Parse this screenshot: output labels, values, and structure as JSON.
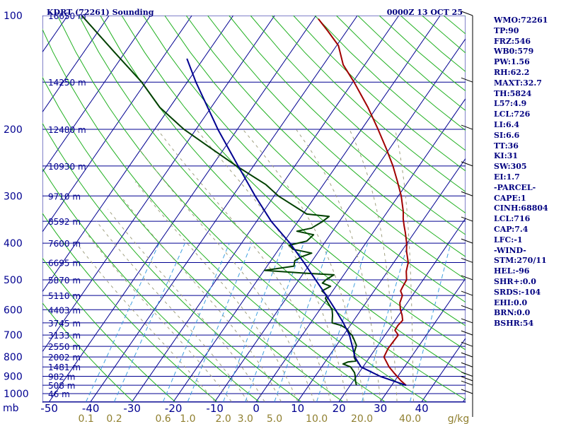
{
  "chart_data": {
    "type": "line",
    "title": "KDRT (72261) Sounding",
    "timestamp": "0000Z 13 OCT 25",
    "pressure_axis": {
      "labels": [
        "100",
        "200",
        "300",
        "400",
        "500",
        "600",
        "700",
        "800",
        "900",
        "1000"
      ],
      "values": [
        100,
        200,
        300,
        400,
        500,
        600,
        700,
        800,
        900,
        1000
      ],
      "unit": "mb",
      "ylim": [
        100,
        1050
      ],
      "scale": "log"
    },
    "temperature_axis": {
      "labels": [
        "-50",
        "-40",
        "-30",
        "-20",
        "-10",
        "0",
        "10",
        "20",
        "30",
        "40"
      ],
      "values": [
        -50,
        -40,
        -30,
        -20,
        -10,
        0,
        10,
        20,
        30,
        40
      ]
    },
    "mixing_ratio_axis": {
      "labels": [
        "0.1",
        "0.2",
        "0.6",
        "1.0",
        "2.0",
        "3.0",
        "5.0",
        "10.0",
        "20.0",
        "40.0"
      ],
      "values": [
        0.1,
        0.2,
        0.6,
        1.0,
        2.0,
        3.0,
        5.0,
        10.0,
        20.0,
        40.0
      ],
      "unit": "g/kg"
    },
    "height_labels": [
      {
        "p": 100,
        "text": "16650 m"
      },
      {
        "p": 150,
        "text": "14250 m"
      },
      {
        "p": 200,
        "text": "12480 m"
      },
      {
        "p": 250,
        "text": "10930 m"
      },
      {
        "p": 300,
        "text": "9710 m"
      },
      {
        "p": 350,
        "text": "8592 m"
      },
      {
        "p": 400,
        "text": "7600 m"
      },
      {
        "p": 450,
        "text": "6695 m"
      },
      {
        "p": 500,
        "text": "5870 m"
      },
      {
        "p": 550,
        "text": "5110 m"
      },
      {
        "p": 600,
        "text": "4403 m"
      },
      {
        "p": 650,
        "text": "3745 m"
      },
      {
        "p": 700,
        "text": "3133 m"
      },
      {
        "p": 750,
        "text": "2550 m"
      },
      {
        "p": 800,
        "text": "2002 m"
      },
      {
        "p": 850,
        "text": "1481 m"
      },
      {
        "p": 900,
        "text": "982 m"
      },
      {
        "p": 950,
        "text": "508 m"
      },
      {
        "p": 1000,
        "text": "46 m"
      }
    ],
    "series": [
      {
        "name": "temperature",
        "color": "#a00000",
        "points": [
          [
            951,
            33.5
          ],
          [
            925,
            31.5
          ],
          [
            880,
            28.4
          ],
          [
            850,
            26.3
          ],
          [
            800,
            23.4
          ],
          [
            760,
            23.0
          ],
          [
            700,
            23.2
          ],
          [
            680,
            21.6
          ],
          [
            660,
            21.5
          ],
          [
            640,
            21.8
          ],
          [
            620,
            20.8
          ],
          [
            600,
            19.5
          ],
          [
            575,
            18.2
          ],
          [
            550,
            17.6
          ],
          [
            535,
            16.4
          ],
          [
            520,
            16.2
          ],
          [
            500,
            16.0
          ],
          [
            475,
            14.5
          ],
          [
            450,
            13.5
          ],
          [
            420,
            11.2
          ],
          [
            400,
            9.9
          ],
          [
            375,
            7.8
          ],
          [
            360,
            6.4
          ],
          [
            345,
            5.0
          ],
          [
            330,
            3.8
          ],
          [
            300,
            0.7
          ],
          [
            275,
            -2.6
          ],
          [
            250,
            -6.3
          ],
          [
            225,
            -10.8
          ],
          [
            200,
            -16.0
          ],
          [
            175,
            -22.1
          ],
          [
            150,
            -29.7
          ],
          [
            135,
            -35.2
          ],
          [
            120,
            -39.6
          ],
          [
            110,
            -44.5
          ],
          [
            102,
            -48.9
          ]
        ]
      },
      {
        "name": "dewpoint",
        "color": "#004000",
        "points": [
          [
            951,
            21.5
          ],
          [
            925,
            20.5
          ],
          [
            900,
            19.7
          ],
          [
            880,
            18.9
          ],
          [
            850,
            17.0
          ],
          [
            835,
            14.7
          ],
          [
            825,
            15.5
          ],
          [
            820,
            17.3
          ],
          [
            800,
            16.2
          ],
          [
            775,
            15.4
          ],
          [
            745,
            14.8
          ],
          [
            720,
            13.3
          ],
          [
            700,
            12.0
          ],
          [
            690,
            11.0
          ],
          [
            675,
            9.9
          ],
          [
            660,
            7.8
          ],
          [
            650,
            5.2
          ],
          [
            640,
            4.8
          ],
          [
            620,
            4.0
          ],
          [
            600,
            3.0
          ],
          [
            575,
            0.8
          ],
          [
            560,
            -0.5
          ],
          [
            550,
            -0.7
          ],
          [
            535,
            -2.6
          ],
          [
            520,
            -1.3
          ],
          [
            510,
            -3.8
          ],
          [
            500,
            -3.5
          ],
          [
            485,
            -2.4
          ],
          [
            480,
            -9.9
          ],
          [
            472,
            -19.9
          ],
          [
            460,
            -13.5
          ],
          [
            445,
            -14.2
          ],
          [
            435,
            -13.3
          ],
          [
            425,
            -11.4
          ],
          [
            415,
            -16.6
          ],
          [
            405,
            -18.1
          ],
          [
            395,
            -14.6
          ],
          [
            380,
            -14.0
          ],
          [
            372,
            -18.6
          ],
          [
            365,
            -15.6
          ],
          [
            350,
            -14.0
          ],
          [
            340,
            -13.3
          ],
          [
            335,
            -19.1
          ],
          [
            300,
            -29.0
          ],
          [
            280,
            -33.9
          ],
          [
            250,
            -44.1
          ],
          [
            225,
            -53.0
          ],
          [
            200,
            -62.9
          ],
          [
            175,
            -72.4
          ],
          [
            150,
            -81.0
          ],
          [
            125,
            -92.6
          ],
          [
            100,
            -106.6
          ]
        ]
      },
      {
        "name": "parcel",
        "color": "#000090",
        "points": [
          [
            951,
            33.5
          ],
          [
            925,
            29.6
          ],
          [
            900,
            25.7
          ],
          [
            850,
            19.5
          ],
          [
            800,
            16.4
          ],
          [
            760,
            14.5
          ],
          [
            700,
            11.4
          ],
          [
            650,
            7.9
          ],
          [
            600,
            3.8
          ],
          [
            550,
            -0.8
          ],
          [
            500,
            -6.0
          ],
          [
            450,
            -11.7
          ],
          [
            400,
            -18.3
          ],
          [
            350,
            -26.5
          ],
          [
            300,
            -34.6
          ],
          [
            250,
            -43.7
          ],
          [
            200,
            -54.7
          ],
          [
            150,
            -67.9
          ],
          [
            130,
            -74.0
          ]
        ]
      }
    ],
    "indices": [
      "WMO:72261",
      "TP:90",
      "FRZ:546",
      "WB0:579",
      "PW:1.56",
      "RH:62.2",
      "MAXT:32.7",
      "TH:5824",
      "L57:4.9",
      "LCL:726",
      "LI:6.4",
      "SI:6.6",
      "TT:36",
      "KI:31",
      "SW:305",
      "EI:1.7",
      "-PARCEL-",
      "CAPE:1",
      "CINH:68804",
      "LCL:716",
      "CAP:7.4",
      "LFC:-1",
      "-WIND-",
      "STM:270/11",
      "HEL:-96",
      "SHR+:0.0",
      "SRDS:-104",
      "EHI:0.0",
      "BRN:0.0",
      "BSHR:54"
    ],
    "colors": {
      "isobars": "#000090",
      "isotherms": "#000090",
      "dry_adiabats": "#20b020",
      "moist_adiabats": "#a0a080",
      "mixing_ratio": "#40a0e0",
      "axis_labels": "#000090",
      "mixing_labels": "#908030",
      "background": "#ffffff"
    }
  }
}
